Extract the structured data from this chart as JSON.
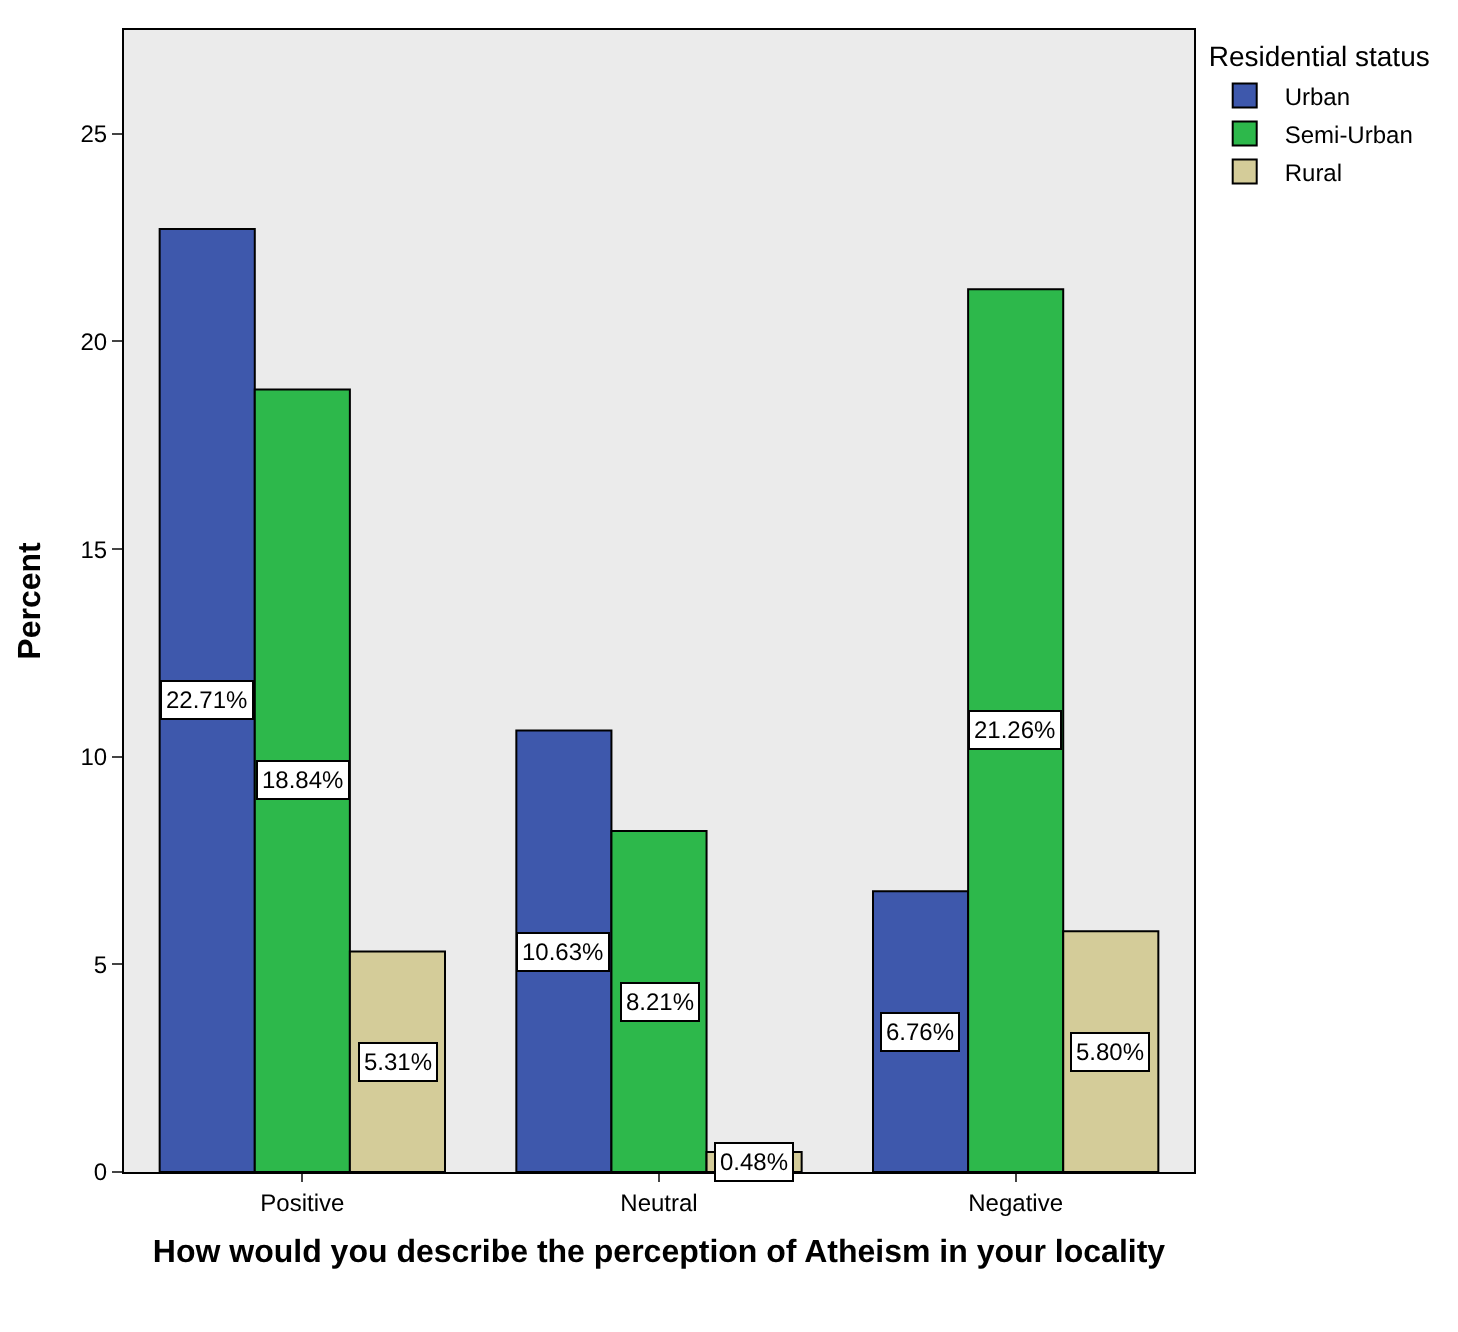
{
  "chart_data": {
    "type": "bar",
    "xlabel": "How would you describe the perception of Atheism in your locality",
    "ylabel": "Percent",
    "legend_title": "Residential status",
    "categories": [
      "Positive",
      "Neutral",
      "Negative"
    ],
    "series": [
      {
        "name": "Urban",
        "color": "#3e58ac",
        "values": [
          22.71,
          10.63,
          6.76
        ],
        "value_labels": [
          "22.71%",
          "10.63%",
          "6.76%"
        ]
      },
      {
        "name": "Semi-Urban",
        "color": "#2db84b",
        "values": [
          18.84,
          8.21,
          21.26
        ],
        "value_labels": [
          "18.84%",
          "8.21%",
          "21.26%"
        ]
      },
      {
        "name": "Rural",
        "color": "#d4cc99",
        "values": [
          5.31,
          0.48,
          5.8
        ],
        "value_labels": [
          "5.31%",
          "0.48%",
          "5.80%"
        ]
      }
    ],
    "ylim": [
      0,
      27.5
    ],
    "yticks": [
      0,
      5,
      10,
      15,
      20,
      25
    ],
    "grid": false,
    "legend": "top right"
  }
}
